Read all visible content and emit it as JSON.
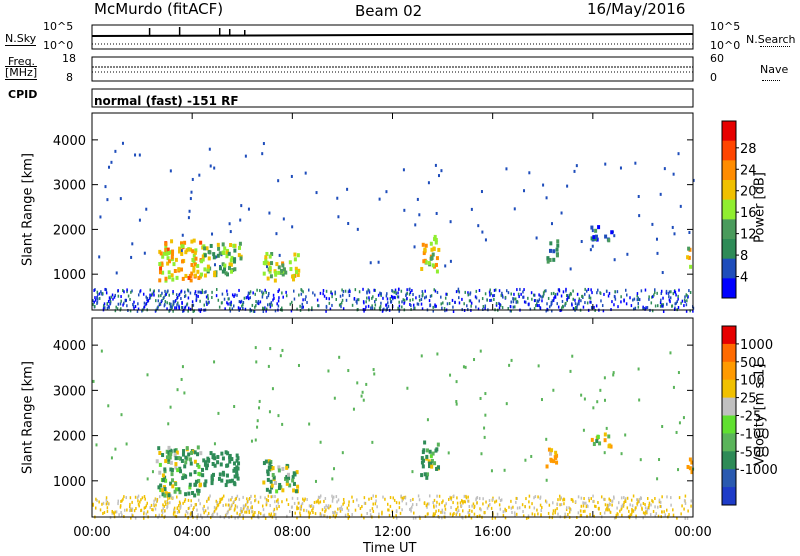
{
  "header": {
    "station": "McMurdo (fitACF)",
    "beam": "Beam 02",
    "date": "16/May/2016"
  },
  "strips": {
    "nsky_label": "N.Sky",
    "nsearch_label": "N.Search",
    "nsky_ticks": [
      "10^5",
      "10^0"
    ],
    "nsearch_ticks": [
      "10^5",
      "10^0"
    ],
    "freq_label_1": "Freq.",
    "freq_label_2": "[MHz]",
    "freq_ticks": [
      "18",
      "8"
    ],
    "nave_label": "Nave",
    "nave_ticks": [
      "60",
      "0"
    ],
    "cpid_label": "CPID",
    "cpid_text": "normal (fast) -151 RF"
  },
  "chart_data": [
    {
      "type": "heatmap",
      "panel": "power",
      "xlabel": "",
      "ylabel": "Slant Range [km]",
      "ylim": [
        200,
        4600
      ],
      "xlim": [
        "00:00",
        "24:00"
      ],
      "y_ticks": [
        "1000",
        "2000",
        "3000",
        "4000"
      ],
      "colorbar": {
        "label": "Power [dB]",
        "ticks": [
          "4",
          "8",
          "12",
          "16",
          "20",
          "24",
          "28"
        ],
        "colors": [
          "#0000ff",
          "#1e4dbb",
          "#2e8b57",
          "#4a9b5c",
          "#90ee30",
          "#f0c000",
          "#ff8c00",
          "#ff4500",
          "#e60000"
        ]
      },
      "blobs": [
        {
          "t0": 2.6,
          "t1": 4.3,
          "r0": 900,
          "r1": 1800,
          "level": 20
        },
        {
          "t0": 4.3,
          "t1": 5.9,
          "r0": 1000,
          "r1": 1750,
          "level": 14
        },
        {
          "t0": 6.8,
          "t1": 8.2,
          "r0": 900,
          "r1": 1500,
          "level": 16
        },
        {
          "t0": 13.1,
          "t1": 13.8,
          "r0": 1100,
          "r1": 1900,
          "level": 18
        },
        {
          "t0": 18.1,
          "t1": 18.6,
          "r0": 1300,
          "r1": 1800,
          "level": 10
        },
        {
          "t0": 19.9,
          "t1": 20.7,
          "r0": 1800,
          "r1": 2100,
          "level": 8
        },
        {
          "t0": 23.7,
          "t1": 23.9,
          "r0": 1200,
          "r1": 1700,
          "level": 18
        }
      ]
    },
    {
      "type": "heatmap",
      "panel": "velocity",
      "xlabel": "Time UT",
      "ylabel": "Slant Range [km]",
      "ylim": [
        200,
        4600
      ],
      "xlim": [
        "00:00",
        "24:00"
      ],
      "x_ticks": [
        "00:00",
        "04:00",
        "08:00",
        "12:00",
        "16:00",
        "20:00",
        "00:00"
      ],
      "y_ticks": [
        "1000",
        "2000",
        "3000",
        "4000"
      ],
      "colorbar": {
        "label": "Velocity [m s-1]",
        "ticks": [
          "1000",
          "500",
          "100",
          "25",
          "-25",
          "-100",
          "-500",
          "-1000"
        ],
        "colors": [
          "#1e3cc8",
          "#2a5ab0",
          "#2e8b57",
          "#5ab45a",
          "#60e030",
          "#c0c0c0",
          "#f0c000",
          "#ff9a00",
          "#ff6a00",
          "#e60000"
        ]
      },
      "blobs": [
        {
          "t0": 2.5,
          "t1": 4.3,
          "r0": 700,
          "r1": 1800,
          "level": 100
        },
        {
          "t0": 4.3,
          "t1": 5.8,
          "r0": 900,
          "r1": 1700,
          "level": 300
        },
        {
          "t0": 6.8,
          "t1": 8.2,
          "r0": 800,
          "r1": 1500,
          "level": 100
        },
        {
          "t0": 13.1,
          "t1": 13.8,
          "r0": 1100,
          "r1": 1900,
          "level": 100
        },
        {
          "t0": 18.1,
          "t1": 18.6,
          "r0": 1300,
          "r1": 1800,
          "level": -200
        },
        {
          "t0": 19.9,
          "t1": 20.7,
          "r0": 1800,
          "r1": 2100,
          "level": -50
        },
        {
          "t0": 23.7,
          "t1": 23.9,
          "r0": 1200,
          "r1": 1700,
          "level": -300
        }
      ]
    }
  ]
}
